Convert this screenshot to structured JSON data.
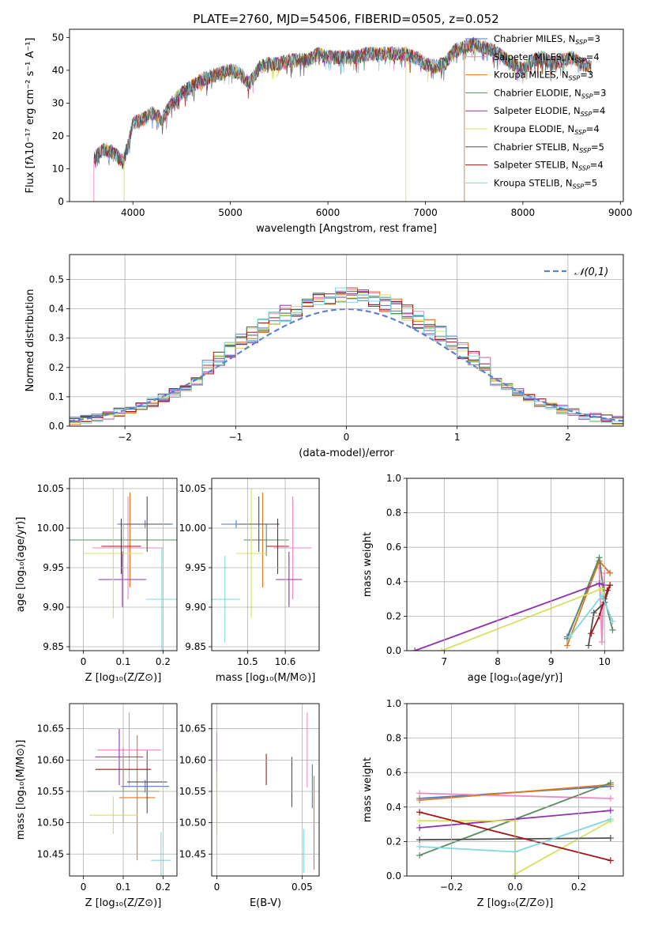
{
  "figure_title": "PLATE=2760, MJD=54506, FIBERID=0505, z=0.052",
  "colors": [
    "#4878d0",
    "#ee88c0",
    "#e07820",
    "#5a8a60",
    "#9030b0",
    "#d8e060",
    "#505050",
    "#a01818",
    "#80d8e0"
  ],
  "chart_data": [
    {
      "id": "spectrum",
      "type": "line",
      "xlabel": "wavelength [Angstrom, rest frame]",
      "ylabel": "Flux [fλ10⁻¹⁷ erg cm⁻² s⁻¹ A⁻¹]",
      "xlim": [
        3350,
        9030
      ],
      "ylim": [
        0,
        52.5
      ],
      "xticks": [
        4000,
        5000,
        6000,
        7000,
        8000,
        9000
      ],
      "yticks": [
        0,
        10,
        20,
        30,
        40,
        50
      ],
      "grid": false,
      "legend_position": "right",
      "series_names": [
        "Chabrier MILES, NSSP=3",
        "Salpeter MILES, NSSP=4",
        "Kroupa MILES, NSSP=3",
        "Chabrier ELODIE, NSSP=3",
        "Salpeter ELODIE, NSSP=4",
        "Kroupa ELODIE, NSSP=4",
        "Chabrier STELIB, NSSP=5",
        "Salpeter STELIB, NSSP=4",
        "Kroupa STELIB, NSSP=5"
      ],
      "continuum": {
        "x": [
          3600,
          3700,
          3800,
          3900,
          3950,
          4000,
          4100,
          4200,
          4300,
          4400,
          4500,
          4600,
          4700,
          4800,
          4900,
          5000,
          5100,
          5200,
          5300,
          5400,
          5500,
          5600,
          5700,
          5800,
          5900,
          6000,
          6100,
          6200,
          6300,
          6400,
          6500,
          6600,
          6700,
          6800,
          6900,
          7000,
          7100,
          7200,
          7300,
          7400,
          7500,
          7600,
          7700,
          7800,
          7900,
          8000,
          8100,
          8200,
          8300,
          8400,
          8500,
          8600,
          8700
        ],
        "y": [
          13,
          16,
          15,
          12,
          17,
          24,
          25,
          27,
          25,
          30,
          33,
          35,
          37,
          38,
          39,
          40,
          39,
          36,
          41,
          42,
          42,
          43,
          43,
          43,
          45,
          44,
          44,
          44,
          44,
          45,
          45,
          45,
          45,
          45,
          44,
          42,
          41,
          42,
          46,
          47,
          48,
          47,
          46,
          44,
          42,
          40,
          43,
          44,
          42,
          43,
          44,
          42,
          41
        ]
      },
      "dips": [
        {
          "x": 3600,
          "from": 0,
          "series": 1
        },
        {
          "x": 3910,
          "from": 0,
          "series": 5
        },
        {
          "x": 6800,
          "from": 0,
          "series": 5
        },
        {
          "x": 7400,
          "from": 0,
          "series": 2
        }
      ]
    },
    {
      "id": "residuals",
      "type": "histogram",
      "xlabel": "(data-model)/error",
      "ylabel": "Normed distribution",
      "xlim": [
        -2.5,
        2.5
      ],
      "ylim": [
        0,
        0.585
      ],
      "xticks": [
        -2,
        -1,
        0,
        1,
        2
      ],
      "yticks": [
        0.0,
        0.1,
        0.2,
        0.3,
        0.4,
        0.5
      ],
      "xtick_labels": [
        "−2",
        "−1",
        "0",
        "1",
        "2"
      ],
      "yticklabels": [
        "0.0",
        "0.1",
        "0.2",
        "0.3",
        "0.4",
        "0.5"
      ],
      "grid": true,
      "legend": "𝒩(0,1)",
      "legend_position": "upper right",
      "bin_width": 0.1,
      "bin_start": -2.5,
      "reference_curve": "N(0,1) dashed",
      "noise_seed": 7
    },
    {
      "id": "age_vs_Z",
      "type": "errorbar",
      "xlabel": "Z [log₁₀(Z/Z⊙)]",
      "ylabel": "age  [log₁₀(age/yr)]",
      "xlim": [
        -0.035,
        0.235
      ],
      "ylim": [
        9.845,
        10.063
      ],
      "xticks": [
        0.0,
        0.1,
        0.2
      ],
      "yticks": [
        9.85,
        9.9,
        9.95,
        10.0,
        10.05
      ],
      "grid": true,
      "points": [
        {
          "x": 0.155,
          "y": 10.005,
          "xerr": 0.07,
          "yerr": 0.005,
          "c": 0
        },
        {
          "x": 0.112,
          "y": 9.975,
          "xerr": 0.09,
          "yerr": 0.065,
          "c": 1
        },
        {
          "x": 0.117,
          "y": 9.985,
          "xerr": 0.07,
          "yerr": 0.06,
          "c": 2
        },
        {
          "x": 0.1,
          "y": 9.985,
          "xerr": 0.135,
          "yerr": 0.02,
          "c": 3
        },
        {
          "x": 0.098,
          "y": 9.935,
          "xerr": 0.06,
          "yerr": 0.035,
          "c": 4
        },
        {
          "x": 0.075,
          "y": 9.968,
          "xerr": 0.075,
          "yerr": 0.082,
          "c": 5
        },
        {
          "x": 0.16,
          "y": 10.005,
          "xerr": 0.06,
          "yerr": 0.035,
          "c": 6
        },
        {
          "x": 0.095,
          "y": 9.977,
          "xerr": 0.05,
          "yerr": 0.035,
          "c": 7
        },
        {
          "x": 0.197,
          "y": 9.91,
          "xerr": 0.04,
          "yerr": 0.065,
          "c": 8
        }
      ]
    },
    {
      "id": "age_vs_mass",
      "type": "errorbar",
      "xlabel": "mass [log₁₀(M/M⊙)]",
      "ylabel": "",
      "xlim": [
        10.405,
        10.69
      ],
      "ylim": [
        9.845,
        10.063
      ],
      "xticks": [
        10.5,
        10.6
      ],
      "yticks": [
        9.85,
        9.9,
        9.95,
        10.0,
        10.05
      ],
      "grid": true,
      "points": [
        {
          "x": 10.47,
          "y": 10.005,
          "xerr": 0.04,
          "yerr": 0.005,
          "c": 0
        },
        {
          "x": 10.62,
          "y": 9.975,
          "xerr": 0.05,
          "yerr": 0.065,
          "c": 1
        },
        {
          "x": 10.54,
          "y": 9.985,
          "xerr": 0.015,
          "yerr": 0.06,
          "c": 2
        },
        {
          "x": 10.55,
          "y": 9.985,
          "xerr": 0.06,
          "yerr": 0.02,
          "c": 3
        },
        {
          "x": 10.61,
          "y": 9.935,
          "xerr": 0.035,
          "yerr": 0.035,
          "c": 4
        },
        {
          "x": 10.51,
          "y": 9.968,
          "xerr": 0.04,
          "yerr": 0.082,
          "c": 5
        },
        {
          "x": 10.53,
          "y": 10.005,
          "xerr": 0.055,
          "yerr": 0.035,
          "c": 6
        },
        {
          "x": 10.58,
          "y": 9.977,
          "xerr": 0.03,
          "yerr": 0.035,
          "c": 7
        },
        {
          "x": 10.44,
          "y": 9.91,
          "xerr": 0.04,
          "yerr": 0.055,
          "c": 8
        }
      ]
    },
    {
      "id": "weight_vs_age",
      "type": "line",
      "xlabel": "age  [log₁₀(age/yr)]",
      "ylabel": "mass weight",
      "xlim": [
        6.3,
        10.35
      ],
      "ylim": [
        0,
        1.0
      ],
      "xticks": [
        7,
        8,
        9,
        10
      ],
      "yticks": [
        0.0,
        0.2,
        0.4,
        0.6,
        0.8,
        1.0
      ],
      "grid": true,
      "series": [
        {
          "c": 0,
          "x": [
            9.3,
            9.9,
            10.1
          ],
          "y": [
            0.08,
            0.52,
            0.45
          ]
        },
        {
          "c": 1,
          "x": [
            9.9,
            9.95,
            10.0
          ],
          "y": [
            0.48,
            0.05,
            0.45
          ]
        },
        {
          "c": 2,
          "x": [
            9.3,
            9.9,
            10.1
          ],
          "y": [
            0.03,
            0.52,
            0.45
          ]
        },
        {
          "c": 3,
          "x": [
            9.3,
            9.9,
            10.0,
            10.15
          ],
          "y": [
            0.07,
            0.54,
            0.3,
            0.12
          ]
        },
        {
          "c": 4,
          "x": [
            6.45,
            9.9,
            10.0
          ],
          "y": [
            0.0,
            0.39,
            0.38
          ]
        },
        {
          "c": 5,
          "x": [
            6.95,
            9.95,
            10.0
          ],
          "y": [
            0.0,
            0.36,
            0.32
          ]
        },
        {
          "c": 6,
          "x": [
            9.7,
            9.8,
            10.0,
            10.1
          ],
          "y": [
            0.03,
            0.22,
            0.28,
            0.38
          ]
        },
        {
          "c": 7,
          "x": [
            9.75,
            9.9,
            10.05,
            10.1
          ],
          "y": [
            0.1,
            0.2,
            0.35,
            0.38
          ]
        },
        {
          "c": 8,
          "x": [
            9.35,
            9.95,
            10.15
          ],
          "y": [
            0.08,
            0.32,
            0.17
          ]
        }
      ]
    },
    {
      "id": "mass_vs_Z",
      "type": "errorbar",
      "xlabel": "Z [log₁₀(Z/Z⊙)]",
      "ylabel": "mass [log₁₀(M/M⊙)]",
      "xlim": [
        -0.035,
        0.235
      ],
      "ylim": [
        10.415,
        10.69
      ],
      "xticks": [
        0.0,
        0.1,
        0.2
      ],
      "yticks": [
        10.45,
        10.5,
        10.55,
        10.6,
        10.65
      ],
      "grid": true,
      "points": [
        {
          "x": 0.155,
          "y": 10.558,
          "xerr": 0.06,
          "yerr": 0.01,
          "c": 0
        },
        {
          "x": 0.115,
          "y": 10.616,
          "xerr": 0.08,
          "yerr": 0.06,
          "c": 1
        },
        {
          "x": 0.135,
          "y": 10.54,
          "xerr": 0.045,
          "yerr": 0.1,
          "c": 2
        },
        {
          "x": 0.1,
          "y": 10.55,
          "xerr": 0.09,
          "yerr": 0.05,
          "c": 3
        },
        {
          "x": 0.09,
          "y": 10.605,
          "xerr": 0.06,
          "yerr": 0.045,
          "c": 4
        },
        {
          "x": 0.075,
          "y": 10.512,
          "xerr": 0.06,
          "yerr": 0.03,
          "c": 5
        },
        {
          "x": 0.16,
          "y": 10.565,
          "xerr": 0.05,
          "yerr": 0.05,
          "c": 6
        },
        {
          "x": 0.1,
          "y": 10.585,
          "xerr": 0.07,
          "yerr": 0.035,
          "c": 7
        },
        {
          "x": 0.195,
          "y": 10.44,
          "xerr": 0.025,
          "yerr": 0.045,
          "c": 8
        }
      ]
    },
    {
      "id": "mass_vs_EBV",
      "type": "errorbar",
      "xlabel": "E(B-V)",
      "ylabel": "",
      "xlim": [
        -0.003,
        0.06
      ],
      "ylim": [
        10.415,
        10.69
      ],
      "xticks": [
        0.0,
        0.05
      ],
      "yticks": [
        10.45,
        10.5,
        10.55,
        10.6,
        10.65
      ],
      "grid": true,
      "points": [
        {
          "x": 0.056,
          "y": 10.558,
          "xerr": 0,
          "yerr": 0.035,
          "c": 0
        },
        {
          "x": 0.053,
          "y": 10.616,
          "xerr": 0,
          "yerr": 0.06,
          "c": 1
        },
        {
          "x": 0.057,
          "y": 10.5,
          "xerr": 0,
          "yerr": 0.075,
          "c": 2
        },
        {
          "x": 0.0,
          "y": 10.6,
          "xerr": 0,
          "yerr": 0.045,
          "c": 4
        },
        {
          "x": 0.0,
          "y": 10.53,
          "xerr": 0,
          "yerr": 0.05,
          "c": 5
        },
        {
          "x": 0.044,
          "y": 10.565,
          "xerr": 0,
          "yerr": 0.04,
          "c": 6
        },
        {
          "x": 0.029,
          "y": 10.585,
          "xerr": 0,
          "yerr": 0.025,
          "c": 7
        },
        {
          "x": 0.051,
          "y": 10.455,
          "xerr": 0,
          "yerr": 0.035,
          "c": 8
        }
      ]
    },
    {
      "id": "weight_vs_Z",
      "type": "line",
      "xlabel": "Z [log₁₀(Z/Z⊙)]",
      "ylabel": "mass weight",
      "xlim": [
        -0.34,
        0.34
      ],
      "ylim": [
        0,
        1.0
      ],
      "xticks": [
        -0.2,
        0.0,
        0.2
      ],
      "xtick_labels": [
        "−0.2",
        "0.0",
        "0.2"
      ],
      "yticks": [
        0.0,
        0.2,
        0.4,
        0.6,
        0.8,
        1.0
      ],
      "grid": true,
      "series": [
        {
          "c": 0,
          "x": [
            -0.3,
            0.3
          ],
          "y": [
            0.45,
            0.52
          ]
        },
        {
          "c": 1,
          "x": [
            -0.3,
            0.3
          ],
          "y": [
            0.48,
            0.45
          ]
        },
        {
          "c": 2,
          "x": [
            -0.3,
            0.3
          ],
          "y": [
            0.44,
            0.53
          ]
        },
        {
          "c": 3,
          "x": [
            -0.3,
            0.3
          ],
          "y": [
            0.12,
            0.54
          ]
        },
        {
          "c": 4,
          "x": [
            -0.3,
            0.0,
            0.3
          ],
          "y": [
            0.28,
            0.33,
            0.38
          ]
        },
        {
          "c": 5,
          "x": [
            -0.3,
            0.0,
            0.0,
            0.3
          ],
          "y": [
            0.32,
            0.32,
            0.01,
            0.32
          ]
        },
        {
          "c": 6,
          "x": [
            -0.3,
            0.3
          ],
          "y": [
            0.21,
            0.22
          ]
        },
        {
          "c": 7,
          "x": [
            -0.3,
            0.3
          ],
          "y": [
            0.37,
            0.09
          ]
        },
        {
          "c": 8,
          "x": [
            -0.3,
            0.0,
            0.3
          ],
          "y": [
            0.17,
            0.14,
            0.33
          ]
        }
      ]
    }
  ]
}
